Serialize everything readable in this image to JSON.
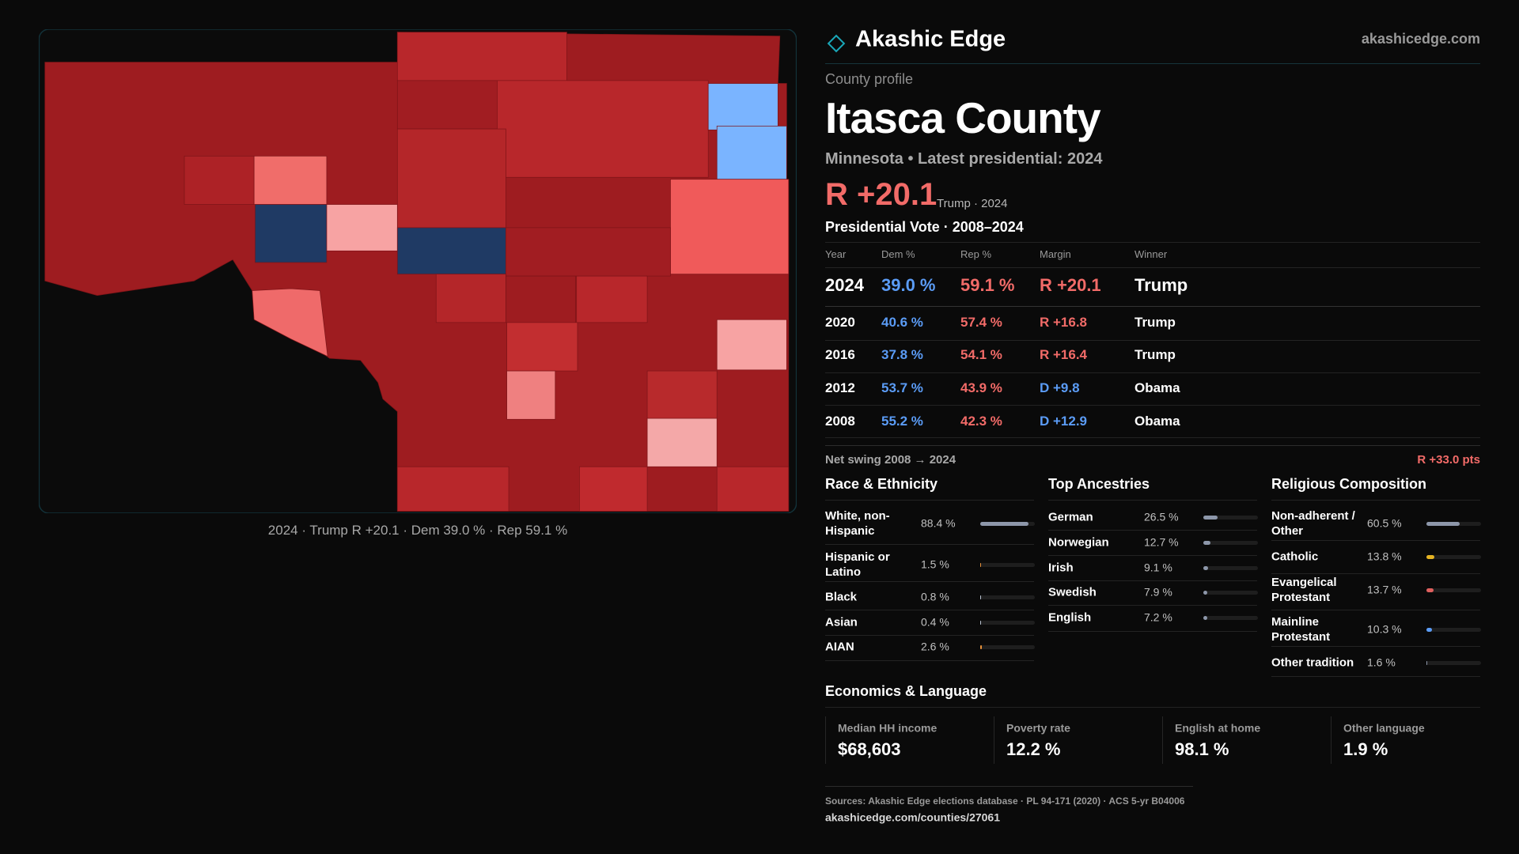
{
  "header": {
    "brand": "Akashic Edge",
    "site": "akashicedge.com"
  },
  "profile": {
    "kicker": "County profile",
    "title": "Itasca County",
    "subtitle": "Minnesota • Latest presidential: 2024",
    "margin": "R +20.1",
    "margin_note": "Trump · 2024"
  },
  "map": {
    "caption": "2024 · Trump R +20.1 · Dem 39.0 % · Rep 59.1 %"
  },
  "votes": {
    "title": "Presidential Vote · 2008–2024",
    "columns": [
      "Year",
      "Dem %",
      "Rep %",
      "Margin",
      "Winner"
    ],
    "rows": [
      [
        "2024",
        "39.0 %",
        "59.1 %",
        "R +20.1",
        "Trump"
      ],
      [
        "2020",
        "40.6 %",
        "57.4 %",
        "R +16.8",
        "Trump"
      ],
      [
        "2016",
        "37.8 %",
        "54.1 %",
        "R +16.4",
        "Trump"
      ],
      [
        "2012",
        "53.7 %",
        "43.9 %",
        "D +9.8",
        "Obama"
      ],
      [
        "2008",
        "55.2 %",
        "42.3 %",
        "D +12.9",
        "Obama"
      ]
    ]
  },
  "swing": {
    "label": "Net swing 2008 → 2024",
    "value": "R +33.0 pts"
  },
  "race": {
    "title": "Race & Ethnicity",
    "rows": [
      {
        "name": "White, non-Hispanic",
        "value": 88.4,
        "label": "88.4 %",
        "color": "#8d97aa"
      },
      {
        "name": "Hispanic or Latino",
        "value": 1.5,
        "label": "1.5 %",
        "color": "#e8913a"
      },
      {
        "name": "Black",
        "value": 0.8,
        "label": "0.8 %",
        "color": "#b9c2d0"
      },
      {
        "name": "Asian",
        "value": 0.4,
        "label": "0.4 %",
        "color": "#b9c2d0"
      },
      {
        "name": "AIAN",
        "value": 2.6,
        "label": "2.6 %",
        "color": "#e8913a"
      }
    ]
  },
  "ancestry": {
    "title": "Top Ancestries",
    "rows": [
      {
        "name": "German",
        "value": 26.5,
        "label": "26.5 %",
        "color": "#8d97aa"
      },
      {
        "name": "Norwegian",
        "value": 12.7,
        "label": "12.7 %",
        "color": "#8d97aa"
      },
      {
        "name": "Irish",
        "value": 9.1,
        "label": "9.1 %",
        "color": "#8d97aa"
      },
      {
        "name": "Swedish",
        "value": 7.9,
        "label": "7.9 %",
        "color": "#8d97aa"
      },
      {
        "name": "English",
        "value": 7.2,
        "label": "7.2 %",
        "color": "#8d97aa"
      }
    ]
  },
  "religion": {
    "title": "Religious Composition",
    "rows": [
      {
        "name": "Non-adherent / Other",
        "value": 60.5,
        "label": "60.5 %",
        "color": "#8d97aa"
      },
      {
        "name": "Catholic",
        "value": 13.8,
        "label": "13.8 %",
        "color": "#e6b422"
      },
      {
        "name": "Evangelical Protestant",
        "value": 13.7,
        "label": "13.7 %",
        "color": "#e0605e"
      },
      {
        "name": "Mainline Protestant",
        "value": 10.3,
        "label": "10.3 %",
        "color": "#5b9cf6"
      },
      {
        "name": "Other tradition",
        "value": 1.6,
        "label": "1.6 %",
        "color": "#8d97aa"
      }
    ]
  },
  "economics": {
    "title": "Economics & Language",
    "cards": [
      {
        "label": "Median HH income",
        "value": "$68,603"
      },
      {
        "label": "Poverty rate",
        "value": "12.2 %"
      },
      {
        "label": "English at home",
        "value": "98.1 %"
      },
      {
        "label": "Other language",
        "value": "1.9 %"
      }
    ]
  },
  "footer": {
    "sources": "Sources: Akashic Edge elections database · PL 94-171 (2020) · ACS 5-yr B04006",
    "url": "akashicedge.com/counties/27061"
  }
}
